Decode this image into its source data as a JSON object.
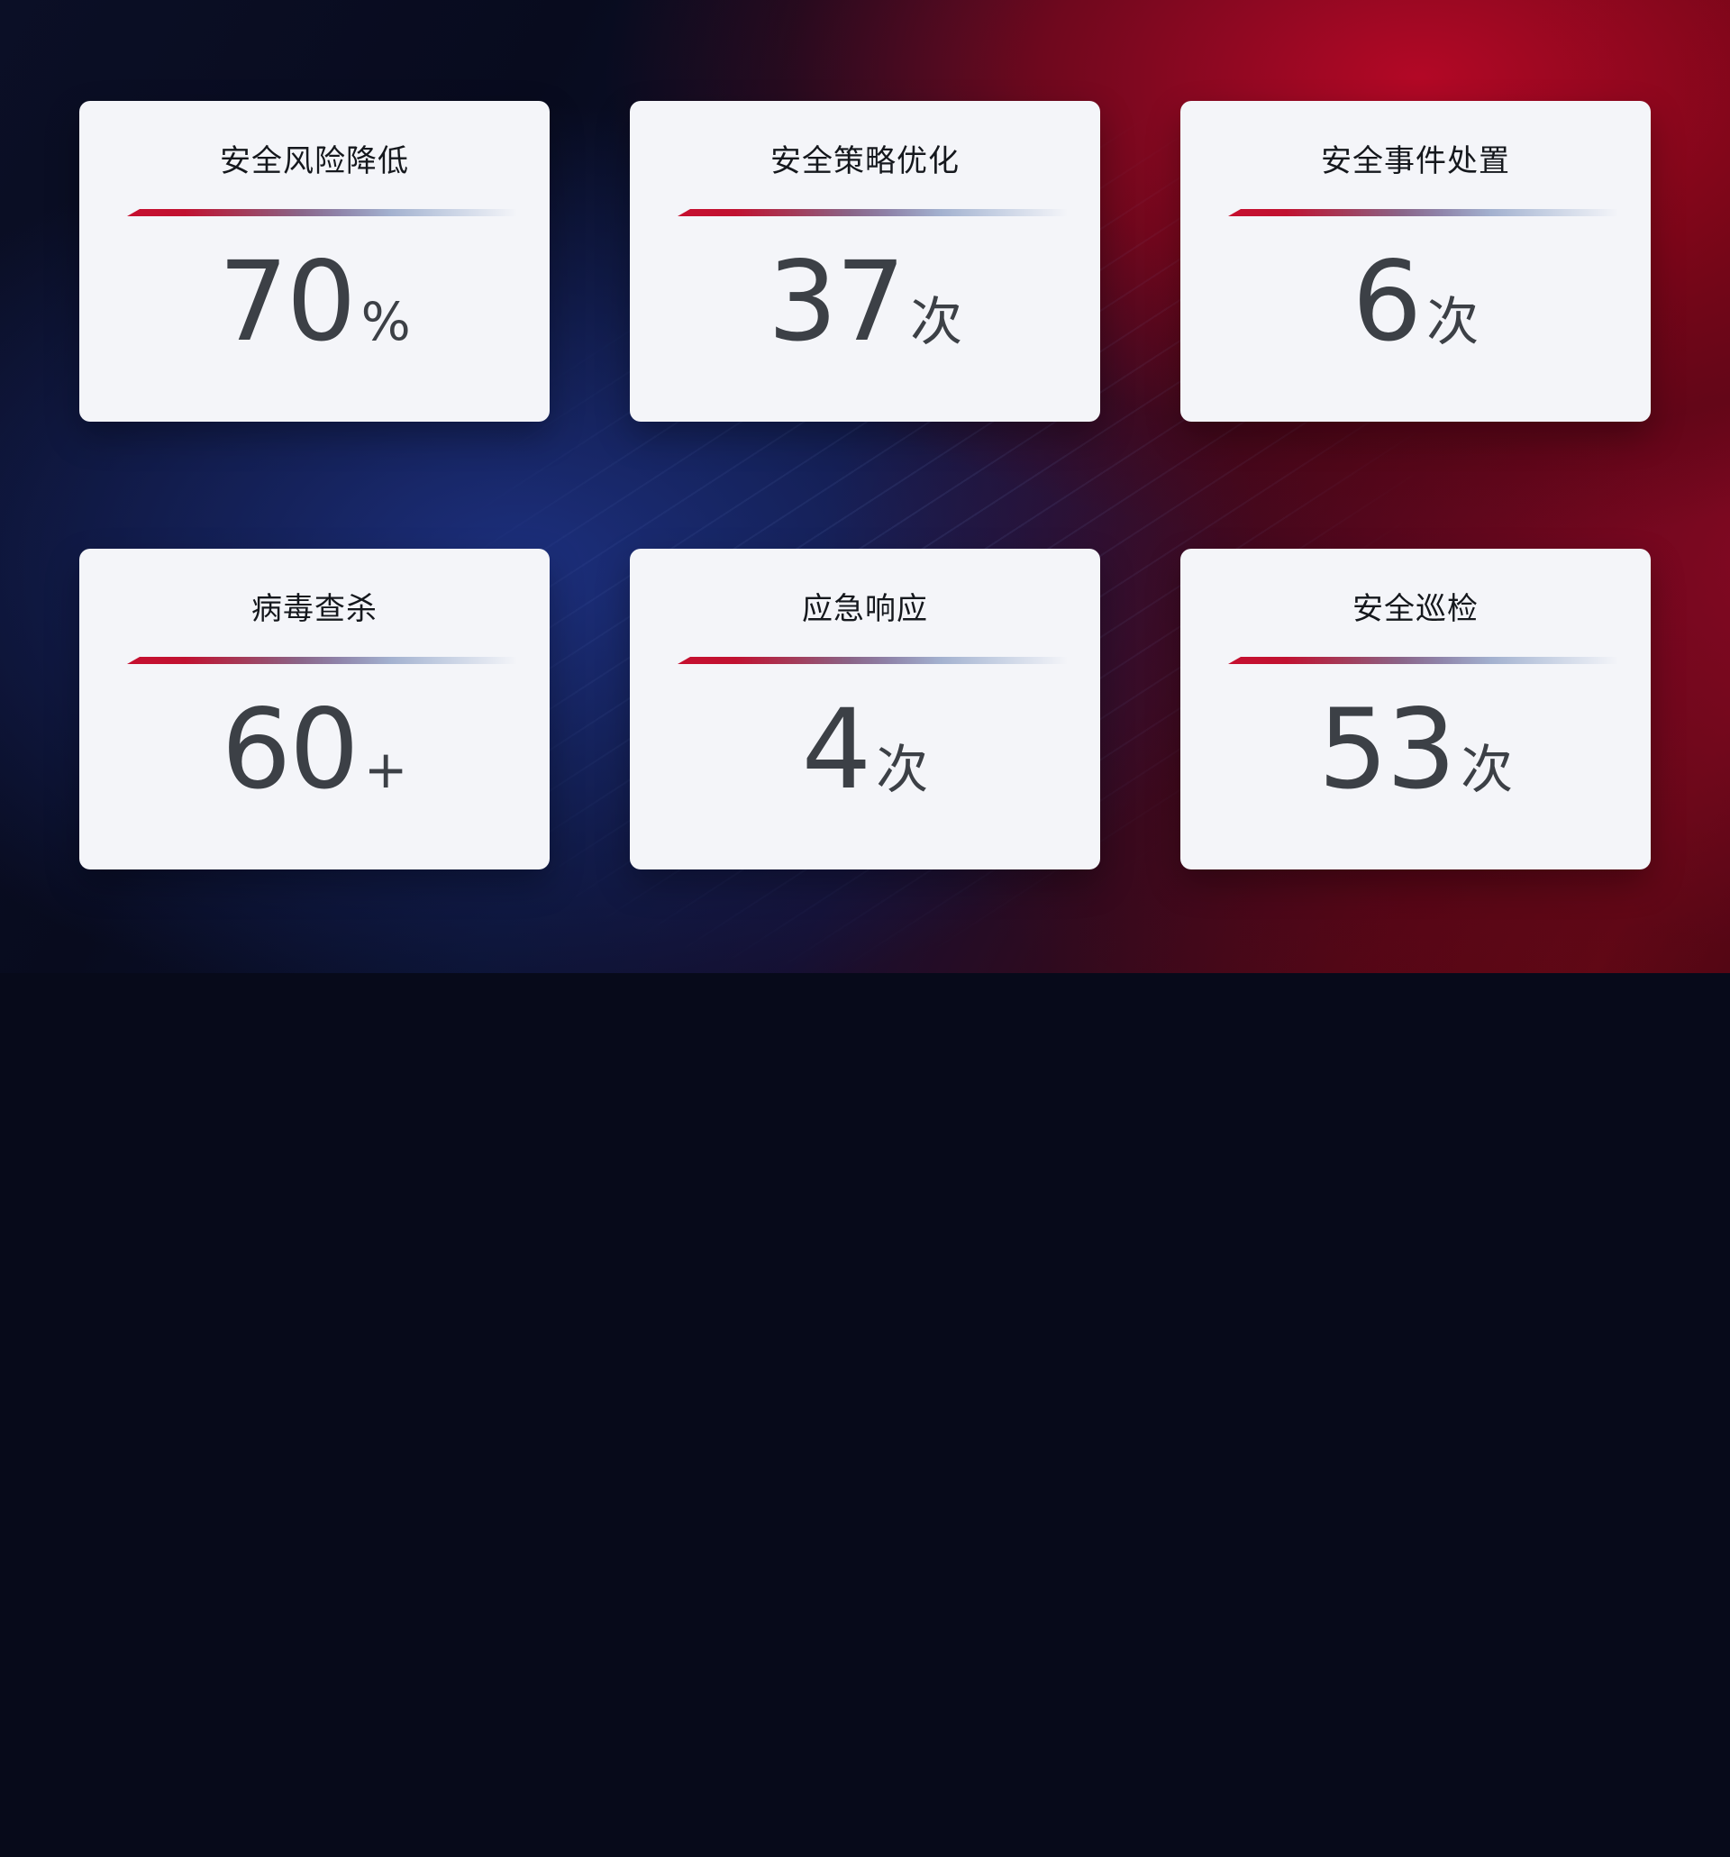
{
  "dashboard": {
    "theme": {
      "card_background": "#f4f5f9",
      "title_color": "#15181d",
      "value_color": "#3c4046",
      "divider_gradient_start": "#c60f2f",
      "divider_gradient_mid": "#8f85ab",
      "divider_gradient_end": "#c2cde1",
      "background_blue": "#1e3284",
      "background_red": "#ba0826",
      "background_dark": "#0b0f26"
    },
    "cards": [
      {
        "title": "安全风险降低",
        "value": "70",
        "unit": "%"
      },
      {
        "title": "安全策略优化",
        "value": "37",
        "unit": "次"
      },
      {
        "title": "安全事件处置",
        "value": "6",
        "unit": "次"
      },
      {
        "title": "病毒查杀",
        "value": "60",
        "unit": "+"
      },
      {
        "title": "应急响应",
        "value": "4",
        "unit": "次"
      },
      {
        "title": "安全巡检",
        "value": "53",
        "unit": "次"
      }
    ]
  }
}
